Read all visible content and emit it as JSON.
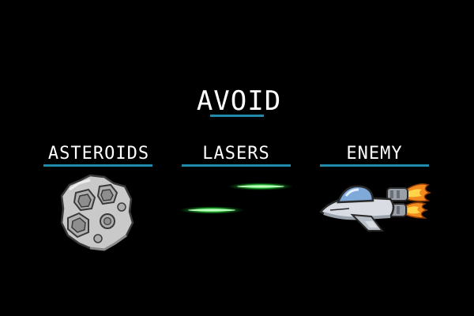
{
  "screen": {
    "title": "AVOID",
    "accent_color": "#1f8aaa",
    "background_color": "#000000"
  },
  "hazards": [
    {
      "label": "ASTEROIDS",
      "icon": "asteroid-icon"
    },
    {
      "label": "LASERS",
      "icon": "laser-beam-icon"
    },
    {
      "label": "ENEMY",
      "icon": "enemy-ship-icon"
    }
  ],
  "colors": {
    "laser": "#2bdc3c",
    "asteroid": "#c9c9c9",
    "ship_body": "#d9dde3",
    "ship_canopy": "#7fa9d9",
    "ship_flame": "#f28a1e"
  }
}
